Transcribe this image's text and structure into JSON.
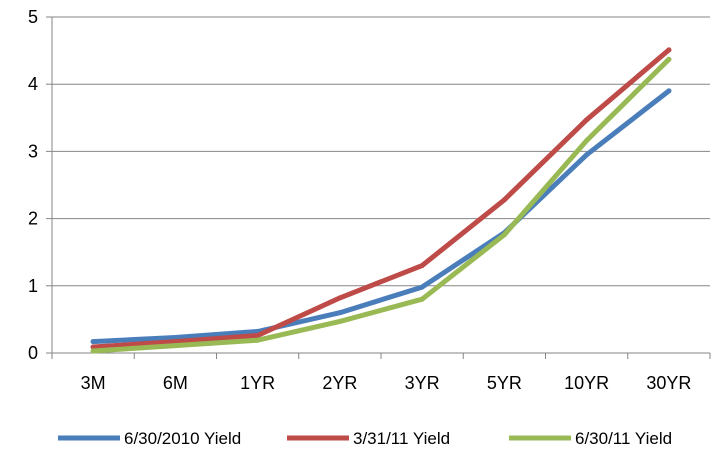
{
  "chart_data": {
    "type": "line",
    "title": "",
    "xlabel": "",
    "ylabel": "",
    "categories": [
      "3M",
      "6M",
      "1YR",
      "2YR",
      "3YR",
      "5YR",
      "10YR",
      "30YR"
    ],
    "ylim": [
      0,
      5
    ],
    "yticks": [
      "0",
      "1",
      "2",
      "3",
      "4",
      "5"
    ],
    "grid": "horizontal",
    "legend_position": "bottom",
    "series": [
      {
        "name": "6/30/2010 Yield",
        "color": "#4a7ebb",
        "values": [
          0.17,
          0.23,
          0.32,
          0.6,
          0.98,
          1.79,
          2.95,
          3.9
        ]
      },
      {
        "name": "3/31/11 Yield",
        "color": "#be4b48",
        "values": [
          0.09,
          0.17,
          0.26,
          0.82,
          1.3,
          2.28,
          3.47,
          4.51
        ]
      },
      {
        "name": "6/30/11 Yield",
        "color": "#98b954",
        "values": [
          0.03,
          0.11,
          0.19,
          0.47,
          0.8,
          1.76,
          3.16,
          4.37
        ]
      }
    ]
  }
}
